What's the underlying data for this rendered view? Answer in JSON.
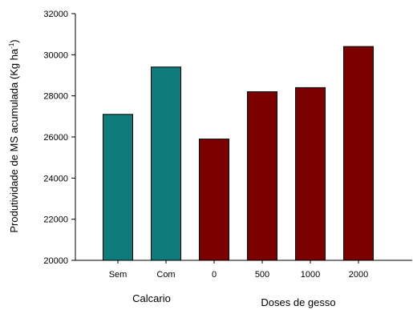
{
  "chart_data": {
    "type": "bar",
    "ylabel_main": "Produtividade de MS acumulada (Kg ha",
    "ylabel_sup": "-1",
    "ylabel_end": ")",
    "ylim": [
      20000,
      32000
    ],
    "yticks": [
      20000,
      22000,
      24000,
      26000,
      28000,
      30000,
      32000
    ],
    "categories": [
      "Sem",
      "Com",
      "0",
      "500",
      "1000",
      "2000"
    ],
    "values": [
      27100,
      29400,
      25900,
      28200,
      28400,
      30400
    ],
    "groups": [
      {
        "name": "Calcario",
        "categories": [
          "Sem",
          "Com"
        ],
        "color": "#0f7b7b"
      },
      {
        "name": "Doses de gesso",
        "categories": [
          "0",
          "500",
          "1000",
          "2000"
        ],
        "color": "#7b0000"
      }
    ],
    "grid": false,
    "legend": "none"
  }
}
